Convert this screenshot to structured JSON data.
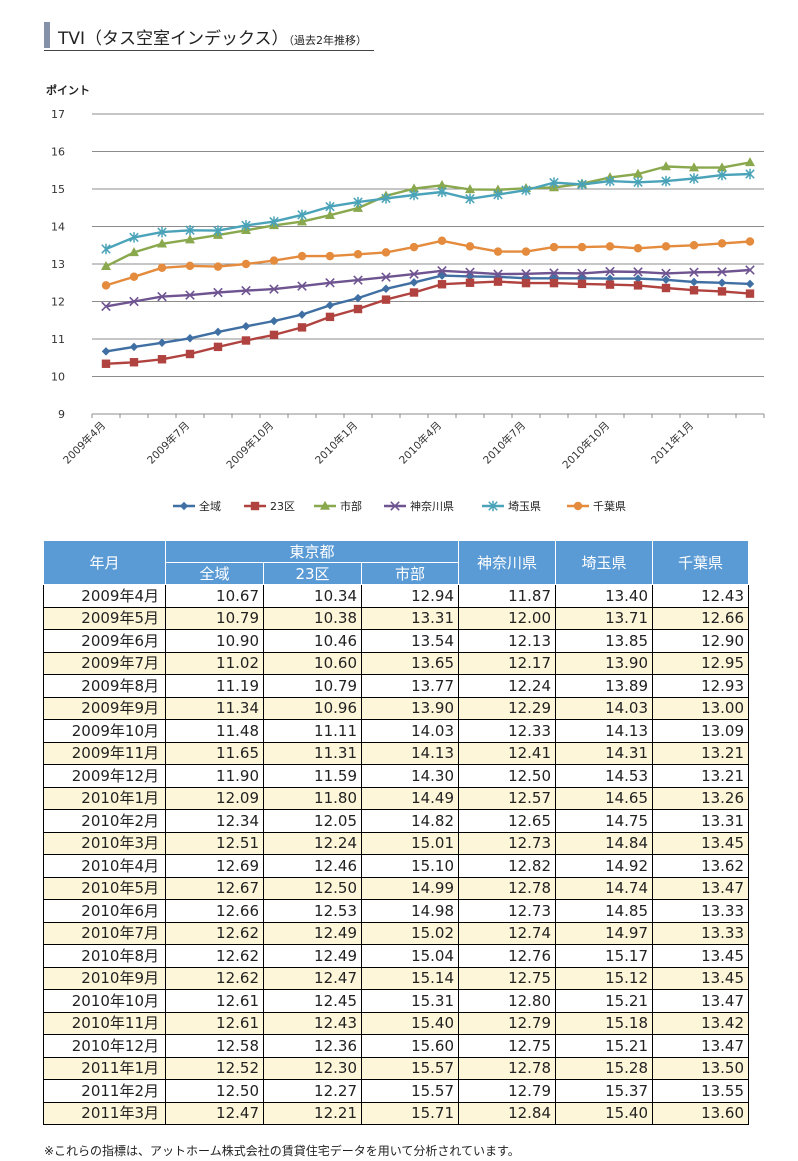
{
  "header": {
    "title": "TVI（タス空室インデックス）",
    "subtitle": "（過去2年推移）"
  },
  "chart_data": {
    "type": "line",
    "ylabel": "ポイント",
    "ylim": [
      9,
      17
    ],
    "yticks": [
      9,
      10,
      11,
      12,
      13,
      14,
      15,
      16,
      17
    ],
    "x": [
      "2009年4月",
      "2009年5月",
      "2009年6月",
      "2009年7月",
      "2009年8月",
      "2009年9月",
      "2009年10月",
      "2009年11月",
      "2009年12月",
      "2010年1月",
      "2010年2月",
      "2010年3月",
      "2010年4月",
      "2010年5月",
      "2010年6月",
      "2010年7月",
      "2010年8月",
      "2010年9月",
      "2010年10月",
      "2010年11月",
      "2010年12月",
      "2011年1月",
      "2011年2月",
      "2011年3月"
    ],
    "xticks": [
      "2009年4月",
      "2009年7月",
      "2009年10月",
      "2010年1月",
      "2010年4月",
      "2010年7月",
      "2010年10月",
      "2011年1月"
    ],
    "grid": true,
    "legend_position": "bottom",
    "series": [
      {
        "name": "全域",
        "color": "#3f6fa3",
        "marker": "diamond",
        "values": [
          10.67,
          10.79,
          10.9,
          11.02,
          11.19,
          11.34,
          11.48,
          11.65,
          11.9,
          12.09,
          12.34,
          12.51,
          12.69,
          12.67,
          12.66,
          12.62,
          12.62,
          12.62,
          12.61,
          12.61,
          12.58,
          12.52,
          12.5,
          12.47
        ]
      },
      {
        "name": "23区",
        "color": "#b04340",
        "marker": "square",
        "values": [
          10.34,
          10.38,
          10.46,
          10.6,
          10.79,
          10.96,
          11.11,
          11.31,
          11.59,
          11.8,
          12.05,
          12.24,
          12.46,
          12.5,
          12.53,
          12.49,
          12.49,
          12.47,
          12.45,
          12.43,
          12.36,
          12.3,
          12.27,
          12.21
        ]
      },
      {
        "name": "市部",
        "color": "#8aa84d",
        "marker": "triangle",
        "values": [
          12.94,
          13.31,
          13.54,
          13.65,
          13.77,
          13.9,
          14.03,
          14.13,
          14.3,
          14.49,
          14.82,
          15.01,
          15.1,
          14.99,
          14.98,
          15.02,
          15.04,
          15.14,
          15.31,
          15.4,
          15.6,
          15.57,
          15.57,
          15.71
        ]
      },
      {
        "name": "神奈川県",
        "color": "#6e5490",
        "marker": "x",
        "values": [
          11.87,
          12.0,
          12.13,
          12.17,
          12.24,
          12.29,
          12.33,
          12.41,
          12.5,
          12.57,
          12.65,
          12.73,
          12.82,
          12.78,
          12.73,
          12.74,
          12.76,
          12.75,
          12.8,
          12.79,
          12.75,
          12.78,
          12.79,
          12.84
        ]
      },
      {
        "name": "埼玉県",
        "color": "#4aa3b8",
        "marker": "star",
        "values": [
          13.4,
          13.71,
          13.85,
          13.9,
          13.89,
          14.03,
          14.13,
          14.31,
          14.53,
          14.65,
          14.75,
          14.84,
          14.92,
          14.74,
          14.85,
          14.97,
          15.17,
          15.12,
          15.21,
          15.18,
          15.21,
          15.28,
          15.37,
          15.4
        ]
      },
      {
        "name": "千葉県",
        "color": "#e48b3d",
        "marker": "circle",
        "values": [
          12.43,
          12.66,
          12.9,
          12.95,
          12.93,
          13.0,
          13.09,
          13.21,
          13.21,
          13.26,
          13.31,
          13.45,
          13.62,
          13.47,
          13.33,
          13.33,
          13.45,
          13.45,
          13.47,
          13.42,
          13.47,
          13.5,
          13.55,
          13.6
        ]
      }
    ]
  },
  "table": {
    "headers": {
      "yearmonth": "年月",
      "tokyo": "東京都",
      "all": "全域",
      "ku23": "23区",
      "shibu": "市部",
      "kanagawa": "神奈川県",
      "saitama": "埼玉県",
      "chiba": "千葉県"
    },
    "rows": [
      [
        "2009年4月",
        "10.67",
        "10.34",
        "12.94",
        "11.87",
        "13.40",
        "12.43"
      ],
      [
        "2009年5月",
        "10.79",
        "10.38",
        "13.31",
        "12.00",
        "13.71",
        "12.66"
      ],
      [
        "2009年6月",
        "10.90",
        "10.46",
        "13.54",
        "12.13",
        "13.85",
        "12.90"
      ],
      [
        "2009年7月",
        "11.02",
        "10.60",
        "13.65",
        "12.17",
        "13.90",
        "12.95"
      ],
      [
        "2009年8月",
        "11.19",
        "10.79",
        "13.77",
        "12.24",
        "13.89",
        "12.93"
      ],
      [
        "2009年9月",
        "11.34",
        "10.96",
        "13.90",
        "12.29",
        "14.03",
        "13.00"
      ],
      [
        "2009年10月",
        "11.48",
        "11.11",
        "14.03",
        "12.33",
        "14.13",
        "13.09"
      ],
      [
        "2009年11月",
        "11.65",
        "11.31",
        "14.13",
        "12.41",
        "14.31",
        "13.21"
      ],
      [
        "2009年12月",
        "11.90",
        "11.59",
        "14.30",
        "12.50",
        "14.53",
        "13.21"
      ],
      [
        "2010年1月",
        "12.09",
        "11.80",
        "14.49",
        "12.57",
        "14.65",
        "13.26"
      ],
      [
        "2010年2月",
        "12.34",
        "12.05",
        "14.82",
        "12.65",
        "14.75",
        "13.31"
      ],
      [
        "2010年3月",
        "12.51",
        "12.24",
        "15.01",
        "12.73",
        "14.84",
        "13.45"
      ],
      [
        "2010年4月",
        "12.69",
        "12.46",
        "15.10",
        "12.82",
        "14.92",
        "13.62"
      ],
      [
        "2010年5月",
        "12.67",
        "12.50",
        "14.99",
        "12.78",
        "14.74",
        "13.47"
      ],
      [
        "2010年6月",
        "12.66",
        "12.53",
        "14.98",
        "12.73",
        "14.85",
        "13.33"
      ],
      [
        "2010年7月",
        "12.62",
        "12.49",
        "15.02",
        "12.74",
        "14.97",
        "13.33"
      ],
      [
        "2010年8月",
        "12.62",
        "12.49",
        "15.04",
        "12.76",
        "15.17",
        "13.45"
      ],
      [
        "2010年9月",
        "12.62",
        "12.47",
        "15.14",
        "12.75",
        "15.12",
        "13.45"
      ],
      [
        "2010年10月",
        "12.61",
        "12.45",
        "15.31",
        "12.80",
        "15.21",
        "13.47"
      ],
      [
        "2010年11月",
        "12.61",
        "12.43",
        "15.40",
        "12.79",
        "15.18",
        "13.42"
      ],
      [
        "2010年12月",
        "12.58",
        "12.36",
        "15.60",
        "12.75",
        "15.21",
        "13.47"
      ],
      [
        "2011年1月",
        "12.52",
        "12.30",
        "15.57",
        "12.78",
        "15.28",
        "13.50"
      ],
      [
        "2011年2月",
        "12.50",
        "12.27",
        "15.57",
        "12.79",
        "15.37",
        "13.55"
      ],
      [
        "2011年3月",
        "12.47",
        "12.21",
        "15.71",
        "12.84",
        "15.40",
        "13.60"
      ]
    ]
  },
  "footnote": "※これらの指標は、アットホーム株式会社の賃貸住宅データを用いて分析されています。"
}
